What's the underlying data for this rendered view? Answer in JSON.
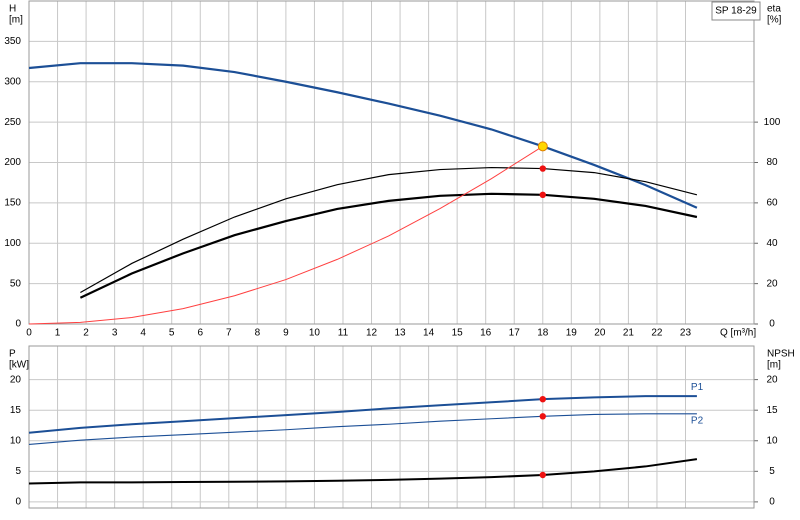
{
  "chart_data": [
    {
      "type": "line",
      "title": "SP 18-29",
      "ylabel": "H",
      "yunit": "[m]",
      "y2label": "eta",
      "y2unit": "[%]",
      "xlabel": "Q [m³/h]",
      "xlim": [
        0,
        25.4
      ],
      "xticks": [
        0,
        1,
        2,
        3,
        4,
        5,
        6,
        7,
        8,
        9,
        10,
        11,
        12,
        13,
        14,
        15,
        16,
        17,
        18,
        19,
        20,
        21,
        22,
        23
      ],
      "ylim": [
        0,
        400
      ],
      "yticks": [
        0,
        50,
        100,
        150,
        200,
        250,
        300,
        350
      ],
      "y2lim": [
        0,
        160
      ],
      "y2ticks": [
        0,
        20,
        40,
        60,
        80,
        100
      ],
      "grid": true,
      "series": [
        {
          "color": "#1c4f96",
          "width": 2.2,
          "x": [
            0,
            1.8,
            3.6,
            5.4,
            7.2,
            9,
            10.8,
            12.6,
            14.4,
            16.2,
            18,
            19.8,
            21.6,
            23.4
          ],
          "values": [
            317,
            323,
            323,
            320,
            312,
            300,
            287,
            273,
            258,
            241,
            220,
            197,
            172,
            144
          ]
        },
        {
          "color": "#000000",
          "width": 1.2,
          "axis": "y2",
          "x": [
            1.8,
            3.6,
            5.4,
            7.2,
            9,
            10.8,
            12.6,
            14.4,
            16.2,
            18,
            19.8,
            21.6,
            23.4
          ],
          "values": [
            15.6,
            30,
            42,
            53,
            62,
            69,
            74,
            76.5,
            77.5,
            77,
            75,
            70.5,
            64
          ]
        },
        {
          "color": "#000000",
          "width": 2.2,
          "axis": "y2",
          "x": [
            1.8,
            3.6,
            5.4,
            7.2,
            9,
            10.8,
            12.6,
            14.4,
            16.2,
            18,
            19.8,
            21.6,
            23.4
          ],
          "values": [
            13,
            25,
            35,
            44,
            51,
            57,
            61,
            63.5,
            64.5,
            64,
            62,
            58.5,
            53
          ]
        },
        {
          "color": "#ff4040",
          "width": 1,
          "x": [
            0,
            1.8,
            3.6,
            5.4,
            7.2,
            9,
            10.8,
            12.6,
            14.4,
            16.2,
            18
          ],
          "values": [
            0,
            2,
            8,
            19,
            35,
            55,
            80,
            109,
            143,
            180,
            220
          ]
        }
      ],
      "markers": [
        {
          "x": 18,
          "y": 220,
          "color": "#ffd700"
        },
        {
          "x": 18,
          "y": 77,
          "axis": "y2",
          "color": "#ee1111"
        },
        {
          "x": 18,
          "y": 64,
          "axis": "y2",
          "color": "#ee1111"
        }
      ]
    },
    {
      "type": "line",
      "ylabel": "P",
      "yunit": "[kW]",
      "y2label": "NPSH",
      "y2unit": "[m]",
      "xlim": [
        0,
        25.4
      ],
      "ylim": [
        -1,
        25.5
      ],
      "yticks": [
        0,
        5,
        10,
        15,
        20
      ],
      "y2lim": [
        -1,
        25.5
      ],
      "y2ticks": [
        0,
        5,
        10,
        15,
        20
      ],
      "grid": true,
      "series": [
        {
          "name": "P1",
          "color": "#1c4f96",
          "width": 2,
          "x": [
            0,
            1.8,
            3.6,
            5.4,
            7.2,
            9,
            10.8,
            12.6,
            14.4,
            16.2,
            18,
            19.8,
            21.6,
            23.4
          ],
          "values": [
            11.3,
            12.1,
            12.7,
            13.2,
            13.7,
            14.2,
            14.7,
            15.3,
            15.8,
            16.3,
            16.8,
            17.1,
            17.3,
            17.3
          ]
        },
        {
          "name": "P2",
          "color": "#1c4f96",
          "width": 1.1,
          "x": [
            0,
            1.8,
            3.6,
            5.4,
            7.2,
            9,
            10.8,
            12.6,
            14.4,
            16.2,
            18,
            19.8,
            21.6,
            23.4
          ],
          "values": [
            9.4,
            10.1,
            10.6,
            11,
            11.4,
            11.8,
            12.3,
            12.7,
            13.2,
            13.6,
            14,
            14.3,
            14.4,
            14.4
          ]
        },
        {
          "color": "#000000",
          "width": 2,
          "axis": "y2",
          "x": [
            0,
            1.8,
            3.6,
            5.4,
            7.2,
            9,
            10.8,
            12.6,
            14.4,
            16.2,
            18,
            19.8,
            21.6,
            23.4
          ],
          "values": [
            3,
            3.2,
            3.2,
            3.25,
            3.3,
            3.35,
            3.45,
            3.6,
            3.8,
            4.05,
            4.4,
            5,
            5.8,
            7
          ]
        }
      ],
      "markers": [
        {
          "x": 18,
          "y": 16.8,
          "color": "#ee1111"
        },
        {
          "x": 18,
          "y": 14,
          "color": "#ee1111"
        },
        {
          "x": 18,
          "y": 4.4,
          "axis": "y2",
          "color": "#ee1111"
        }
      ]
    }
  ]
}
